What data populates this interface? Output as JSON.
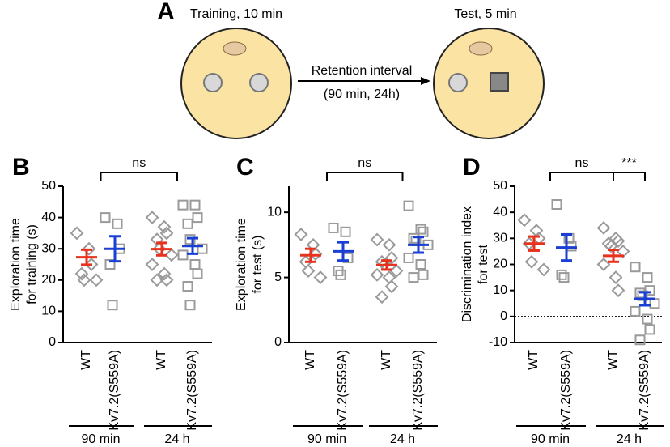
{
  "panel_a": {
    "letter": "A",
    "training_label": "Training, 10 min",
    "test_label": "Test, 5 min",
    "arrow_label": [
      "Retention interval",
      "(90 min, 24h)"
    ]
  },
  "chart_data": [
    {
      "type": "dotplot",
      "panel": "B",
      "y_label": [
        "Exploration time",
        "for training (s)"
      ],
      "categories": [
        "WT",
        "Kv7.2(S559A)",
        "WT",
        "Kv7.2(S559A)"
      ],
      "timepoints": [
        "90 min",
        "24 h"
      ],
      "markers": [
        "diamond",
        "square",
        "diamond",
        "square"
      ],
      "point_color": "#9a9a9a",
      "mean_colors": [
        "#e8321e",
        "#1a3fd4",
        "#e8321e",
        "#1a3fd4"
      ],
      "points": [
        [
          35,
          30,
          25,
          22,
          20,
          20
        ],
        [
          40,
          38,
          30,
          25,
          12
        ],
        [
          40,
          37,
          35,
          33,
          30,
          28,
          25,
          22,
          20,
          20
        ],
        [
          44,
          44,
          40,
          38,
          33,
          30,
          28,
          25,
          22,
          18,
          12
        ]
      ],
      "means": [
        27.3,
        30,
        29.9,
        30.9
      ],
      "sems": [
        2.4,
        4,
        2,
        2.5
      ],
      "ylim": [
        0,
        50
      ],
      "yticks": [
        0,
        10,
        20,
        30,
        40,
        50
      ],
      "comparisons": [
        {
          "label": "ns",
          "groups": [
            [
              0,
              1
            ],
            [
              2,
              3
            ]
          ]
        }
      ]
    },
    {
      "type": "dotplot",
      "panel": "C",
      "y_label": [
        "Exploration time",
        "for test (s)"
      ],
      "categories": [
        "WT",
        "Kv7.2(S559A)",
        "WT",
        "Kv7.2(S559A)"
      ],
      "timepoints": [
        "90 min",
        "24 h"
      ],
      "markers": [
        "diamond",
        "square",
        "diamond",
        "square"
      ],
      "point_color": "#9a9a9a",
      "mean_colors": [
        "#e8321e",
        "#1a3fd4",
        "#e8321e",
        "#1a3fd4"
      ],
      "points": [
        [
          8.3,
          7.5,
          6.8,
          6.2,
          5.5,
          5.0
        ],
        [
          8.8,
          8.5,
          6.5,
          5.5,
          5.2
        ],
        [
          7.9,
          7.5,
          6.5,
          6.2,
          6.0,
          5.5,
          5.2,
          5.0,
          4.3,
          3.5
        ],
        [
          10.5,
          8.7,
          8.5,
          8.0,
          7.8,
          7.5,
          6.5,
          6.0,
          5.2,
          5.0
        ]
      ],
      "means": [
        6.7,
        7,
        5.95,
        7.5
      ],
      "sems": [
        0.5,
        0.7,
        0.35,
        0.6
      ],
      "ylim": [
        0,
        12
      ],
      "yticks": [
        0,
        5,
        10
      ],
      "comparisons": [
        {
          "label": "ns",
          "groups": [
            [
              0,
              1
            ],
            [
              2,
              3
            ]
          ]
        }
      ]
    },
    {
      "type": "dotplot",
      "panel": "D",
      "y_label": [
        "Discrimination index",
        "for test"
      ],
      "categories": [
        "WT",
        "Kv7.2(S559A)",
        "WT",
        "Kv7.2(S559A)"
      ],
      "timepoints": [
        "90 min",
        "24 h"
      ],
      "markers": [
        "diamond",
        "square",
        "diamond",
        "square"
      ],
      "point_color": "#9a9a9a",
      "mean_colors": [
        "#e8321e",
        "#1a3fd4",
        "#e8321e",
        "#1a3fd4"
      ],
      "points": [
        [
          37,
          33,
          30,
          28,
          21,
          18
        ],
        [
          43,
          30,
          27,
          16,
          15
        ],
        [
          34,
          30,
          29,
          28,
          27,
          25,
          20,
          15,
          10
        ],
        [
          19,
          15,
          10,
          9,
          8,
          5,
          2,
          -1,
          -5,
          -9
        ]
      ],
      "means": [
        28,
        26.5,
        23.3,
        6.8
      ],
      "sems": [
        2.7,
        5,
        2.3,
        2.5
      ],
      "ylim": [
        -10,
        50
      ],
      "yticks": [
        -10,
        0,
        10,
        20,
        30,
        40,
        50
      ],
      "reference_line": 0,
      "comparisons": [
        {
          "label": "ns",
          "groups": [
            [
              0,
              1
            ],
            [
              2
            ]
          ]
        },
        {
          "label": "***",
          "groups": [
            [
              2
            ],
            [
              3
            ]
          ]
        }
      ]
    }
  ]
}
